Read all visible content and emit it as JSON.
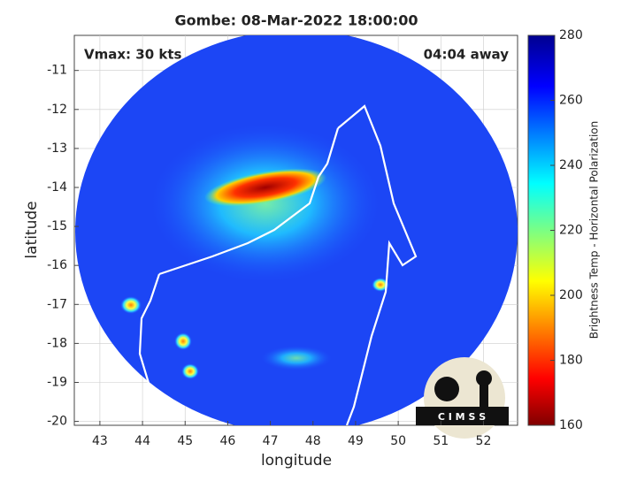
{
  "title": "Gombe: 08-Mar-2022 18:00:00",
  "annotations": {
    "vmax": "Vmax: 30 kts",
    "away": "04:04 away"
  },
  "x_axis": {
    "label": "longitude",
    "lim": [
      42.4,
      52.8
    ],
    "ticks": [
      43,
      44,
      45,
      46,
      47,
      48,
      49,
      50,
      51,
      52
    ]
  },
  "y_axis": {
    "label": "latitude",
    "lim": [
      -20.1,
      -10.1
    ],
    "ticks": [
      -20,
      -19,
      -18,
      -17,
      -16,
      -15,
      -14,
      -13,
      -12,
      -11
    ]
  },
  "colorbar": {
    "label": "Brightness Temp - Horizontal Polarization",
    "lim": [
      160,
      280
    ],
    "ticks": [
      160,
      180,
      200,
      220,
      240,
      260,
      280
    ]
  },
  "logo": "C I M S S"
}
